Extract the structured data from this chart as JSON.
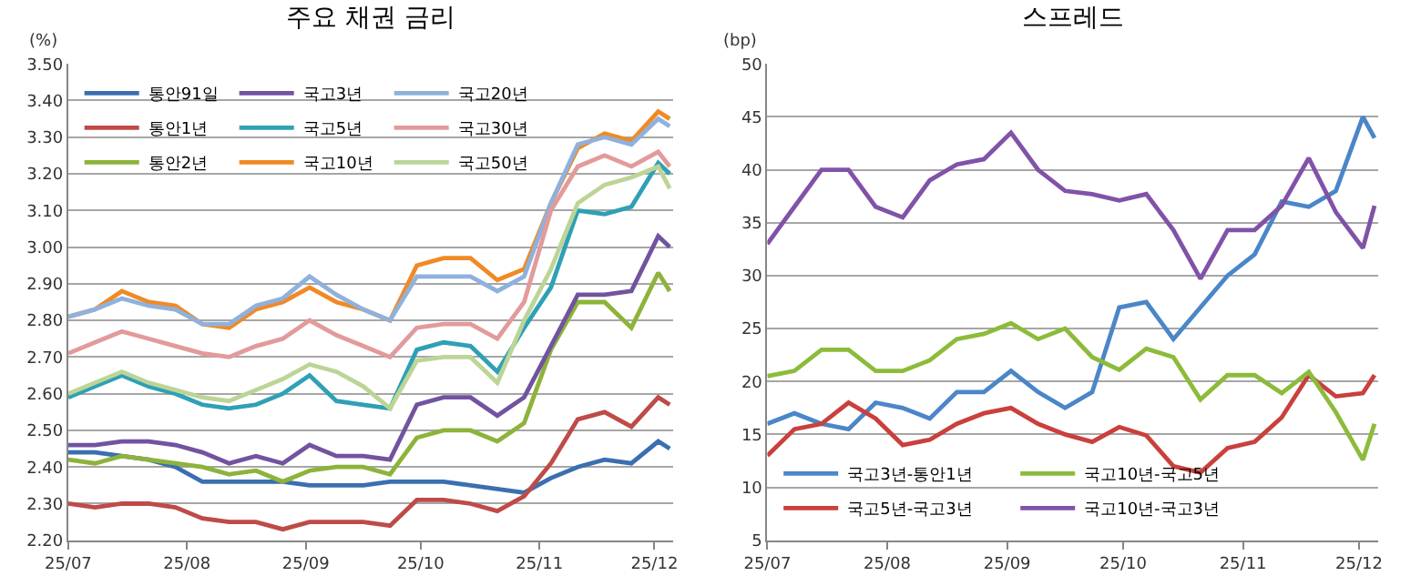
{
  "chart_data": [
    {
      "type": "line",
      "title": "주요 채권 금리",
      "ylabel": "(%)",
      "x": [
        "--07-01",
        "--07-08",
        "--07-15",
        "--07-22",
        "--07-29",
        "--08-05",
        "--08-12",
        "--08-19",
        "--08-26",
        "--09-02",
        "--09-09",
        "--09-16",
        "--09-23",
        "--09-30",
        "--10-07",
        "--10-14",
        "--10-21",
        "--10-28",
        "--11-04",
        "--11-11",
        "--11-18",
        "--11-25",
        "--12-02",
        "--12-05"
      ],
      "xlim": [
        "--07-01",
        "--12-06"
      ],
      "xticks": [
        {
          "value": "--07-01",
          "label": "25/07"
        },
        {
          "value": "--08-01",
          "label": "25/08"
        },
        {
          "value": "--09-01",
          "label": "25/09"
        },
        {
          "value": "--10-01",
          "label": "25/10"
        },
        {
          "value": "--11-01",
          "label": "25/11"
        },
        {
          "value": "--12-01",
          "label": "25/12"
        }
      ],
      "ylim": [
        2.2,
        3.5
      ],
      "yticks": [
        {
          "value": 2.2,
          "label": "2.20"
        },
        {
          "value": 2.3,
          "label": "2.30"
        },
        {
          "value": 2.4,
          "label": "2.40"
        },
        {
          "value": 2.5,
          "label": "2.50"
        },
        {
          "value": 2.6,
          "label": "2.60"
        },
        {
          "value": 2.7,
          "label": "2.70"
        },
        {
          "value": 2.8,
          "label": "2.80"
        },
        {
          "value": 2.9,
          "label": "2.90"
        },
        {
          "value": 3.0,
          "label": "3.00"
        },
        {
          "value": 3.1,
          "label": "3.10"
        },
        {
          "value": 3.2,
          "label": "3.20"
        },
        {
          "value": 3.3,
          "label": "3.30"
        },
        {
          "value": 3.4,
          "label": "3.40"
        },
        {
          "value": 3.5,
          "label": "3.50"
        }
      ],
      "grid": "y",
      "legend": "top left",
      "marker": "none",
      "line_style": "solid",
      "series": [
        {
          "name": "통안91일",
          "color": "#3a6fb0",
          "values": [
            2.44,
            2.44,
            2.43,
            2.42,
            2.4,
            2.36,
            2.36,
            2.36,
            2.36,
            2.35,
            2.35,
            2.35,
            2.36,
            2.36,
            2.36,
            2.35,
            2.34,
            2.33,
            2.37,
            2.4,
            2.42,
            2.41,
            2.47,
            2.45
          ]
        },
        {
          "name": "통안1년",
          "color": "#be4b48",
          "values": [
            2.3,
            2.29,
            2.3,
            2.3,
            2.29,
            2.26,
            2.25,
            2.25,
            2.23,
            2.25,
            2.25,
            2.25,
            2.24,
            2.31,
            2.31,
            2.3,
            2.28,
            2.32,
            2.41,
            2.53,
            2.55,
            2.51,
            2.59,
            2.57
          ]
        },
        {
          "name": "통안2년",
          "color": "#8db33a",
          "values": [
            2.42,
            2.41,
            2.43,
            2.42,
            2.41,
            2.4,
            2.38,
            2.39,
            2.36,
            2.39,
            2.4,
            2.4,
            2.38,
            2.48,
            2.5,
            2.5,
            2.47,
            2.52,
            2.72,
            2.85,
            2.85,
            2.78,
            2.93,
            2.88
          ]
        },
        {
          "name": "국고3년",
          "color": "#7153a0",
          "values": [
            2.46,
            2.46,
            2.47,
            2.47,
            2.46,
            2.44,
            2.41,
            2.43,
            2.41,
            2.46,
            2.43,
            2.43,
            2.42,
            2.57,
            2.59,
            2.59,
            2.54,
            2.59,
            2.73,
            2.87,
            2.87,
            2.88,
            3.03,
            3.0
          ]
        },
        {
          "name": "국고5년",
          "color": "#2fa0b5",
          "values": [
            2.59,
            2.62,
            2.65,
            2.62,
            2.6,
            2.57,
            2.56,
            2.57,
            2.6,
            2.65,
            2.58,
            2.57,
            2.56,
            2.72,
            2.74,
            2.73,
            2.66,
            2.78,
            2.89,
            3.1,
            3.09,
            3.11,
            3.23,
            3.2
          ]
        },
        {
          "name": "국고10년",
          "color": "#f08a24",
          "values": [
            2.81,
            2.83,
            2.88,
            2.85,
            2.84,
            2.79,
            2.78,
            2.83,
            2.85,
            2.89,
            2.85,
            2.83,
            2.8,
            2.95,
            2.97,
            2.97,
            2.91,
            2.94,
            3.12,
            3.27,
            3.31,
            3.29,
            3.37,
            3.35
          ]
        },
        {
          "name": "국고20년",
          "color": "#8fb1dd",
          "values": [
            2.81,
            2.83,
            2.86,
            2.84,
            2.83,
            2.79,
            2.79,
            2.84,
            2.86,
            2.92,
            2.87,
            2.83,
            2.8,
            2.92,
            2.92,
            2.92,
            2.88,
            2.92,
            3.12,
            3.28,
            3.3,
            3.28,
            3.35,
            3.33
          ]
        },
        {
          "name": "국고30년",
          "color": "#e39a9a",
          "values": [
            2.71,
            2.74,
            2.77,
            2.75,
            2.73,
            2.71,
            2.7,
            2.73,
            2.75,
            2.8,
            2.76,
            2.73,
            2.7,
            2.78,
            2.79,
            2.79,
            2.75,
            2.85,
            3.1,
            3.22,
            3.25,
            3.22,
            3.26,
            3.22
          ]
        },
        {
          "name": "국고50년",
          "color": "#bcd597",
          "values": [
            2.6,
            2.63,
            2.66,
            2.63,
            2.61,
            2.59,
            2.58,
            2.61,
            2.64,
            2.68,
            2.66,
            2.62,
            2.56,
            2.69,
            2.7,
            2.7,
            2.63,
            2.8,
            2.94,
            3.12,
            3.17,
            3.19,
            3.22,
            3.16
          ]
        }
      ]
    },
    {
      "type": "line",
      "title": "스프레드",
      "ylabel": "(bp)",
      "x": [
        "--07-01",
        "--07-08",
        "--07-15",
        "--07-22",
        "--07-29",
        "--08-05",
        "--08-12",
        "--08-19",
        "--08-26",
        "--09-02",
        "--09-09",
        "--09-16",
        "--09-23",
        "--09-30",
        "--10-07",
        "--10-14",
        "--10-21",
        "--10-28",
        "--11-04",
        "--11-11",
        "--11-18",
        "--11-25",
        "--12-02",
        "--12-05"
      ],
      "xlim": [
        "--07-01",
        "--12-06"
      ],
      "xticks": [
        {
          "value": "--07-01",
          "label": "25/07"
        },
        {
          "value": "--08-01",
          "label": "25/08"
        },
        {
          "value": "--09-01",
          "label": "25/09"
        },
        {
          "value": "--10-01",
          "label": "25/10"
        },
        {
          "value": "--11-01",
          "label": "25/11"
        },
        {
          "value": "--12-01",
          "label": "25/12"
        }
      ],
      "ylim": [
        5,
        50
      ],
      "yticks": [
        5,
        10,
        15,
        20,
        25,
        30,
        35,
        40,
        45,
        50
      ],
      "grid": "y",
      "legend": "bottom left",
      "marker": "none",
      "line_style": "solid",
      "series": [
        {
          "name": "국고3년-통안1년",
          "color": "#4a86c8",
          "values": [
            16,
            17,
            16,
            15.5,
            18,
            17.5,
            16.5,
            19,
            19,
            21,
            19,
            17.5,
            19,
            27,
            27.5,
            24,
            27,
            30,
            32,
            37,
            36.5,
            38,
            45,
            43
          ]
        },
        {
          "name": "국고5년-국고3년",
          "color": "#c9403c",
          "values": [
            13,
            15.5,
            16,
            18,
            16.5,
            14,
            14.5,
            16,
            17,
            17.5,
            16,
            15,
            14.3,
            15.7,
            14.9,
            12,
            11.4,
            13.7,
            14.3,
            16.6,
            20.6,
            18.6,
            18.9,
            20.6
          ]
        },
        {
          "name": "국고10년-국고5년",
          "color": "#8cbb3a",
          "values": [
            20.5,
            21,
            23,
            23,
            21,
            21,
            22,
            24,
            24.5,
            25.5,
            24,
            25,
            22.3,
            21.1,
            23.1,
            22.3,
            18.3,
            20.6,
            20.6,
            18.9,
            20.9,
            17.1,
            12.6,
            16
          ]
        },
        {
          "name": "국고10년-국고3년",
          "color": "#8052a8",
          "values": [
            33,
            36.5,
            40,
            40,
            36.5,
            35.5,
            39,
            40.5,
            41,
            43.5,
            40,
            38,
            37.7,
            37.1,
            37.7,
            34.3,
            29.7,
            34.3,
            34.3,
            36.6,
            41.1,
            36,
            32.6,
            36.6
          ]
        }
      ]
    }
  ]
}
